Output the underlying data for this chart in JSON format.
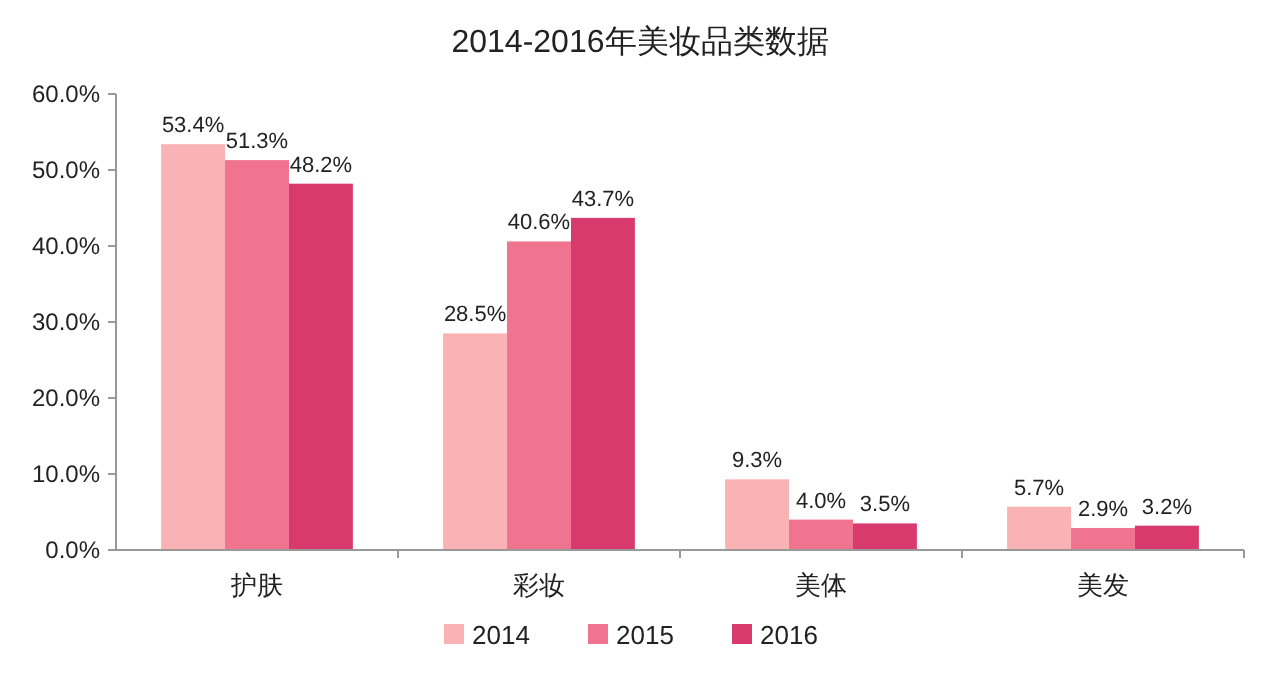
{
  "chart_data": {
    "type": "bar",
    "title": "2014-2016年美妆品类数据",
    "categories": [
      "护肤",
      "彩妆",
      "美体",
      "美发"
    ],
    "series": [
      {
        "name": "2014",
        "color": "#f9b3b5",
        "values": [
          53.4,
          28.5,
          9.3,
          5.7
        ],
        "value_labels": [
          "53.4%",
          "28.5%",
          "9.3%",
          "5.7%"
        ]
      },
      {
        "name": "2015",
        "color": "#f07390",
        "values": [
          51.3,
          40.6,
          4.0,
          2.9
        ],
        "value_labels": [
          "51.3%",
          "40.6%",
          "4.0%",
          "2.9%"
        ]
      },
      {
        "name": "2016",
        "color": "#d93a6e",
        "values": [
          48.2,
          43.7,
          3.5,
          3.2
        ],
        "value_labels": [
          "48.2%",
          "43.7%",
          "3.5%",
          "3.2%"
        ]
      }
    ],
    "ylim": [
      0,
      60
    ],
    "yticks": [
      {
        "value": 0,
        "label": "0.0%"
      },
      {
        "value": 10,
        "label": "10.0%"
      },
      {
        "value": 20,
        "label": "20.0%"
      },
      {
        "value": 30,
        "label": "30.0%"
      },
      {
        "value": 40,
        "label": "40.0%"
      },
      {
        "value": 50,
        "label": "50.0%"
      },
      {
        "value": 60,
        "label": "60.0%"
      }
    ],
    "legend": "bottom",
    "grid": false
  }
}
